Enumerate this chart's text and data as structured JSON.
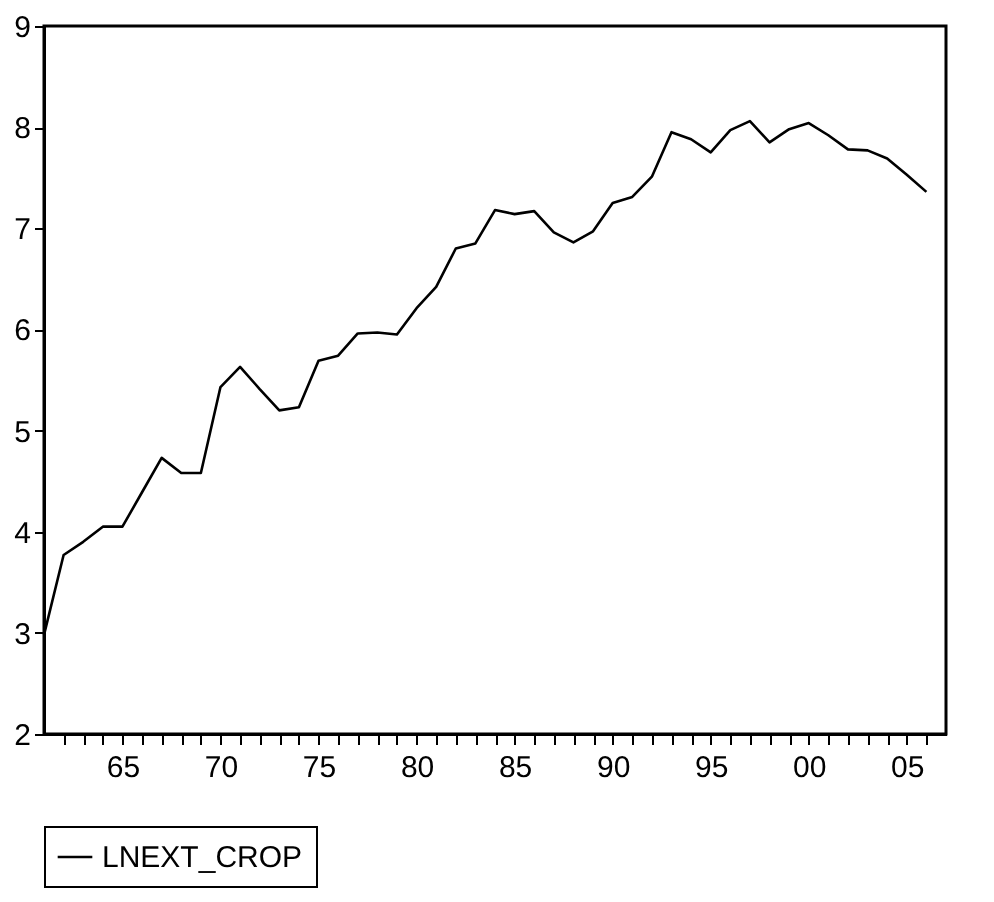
{
  "chart_data": {
    "type": "line",
    "x": [
      1961,
      1962,
      1963,
      1964,
      1965,
      1966,
      1967,
      1968,
      1969,
      1970,
      1971,
      1972,
      1973,
      1974,
      1975,
      1976,
      1977,
      1978,
      1979,
      1980,
      1981,
      1982,
      1983,
      1984,
      1985,
      1986,
      1987,
      1988,
      1989,
      1990,
      1991,
      1992,
      1993,
      1994,
      1995,
      1996,
      1997,
      1998,
      1999,
      2000,
      2001,
      2002,
      2003,
      2004,
      2005,
      2006
    ],
    "series": [
      {
        "name": "LNEXT_CROP",
        "color": "#000000",
        "values": [
          2.98,
          3.77,
          3.9,
          4.05,
          4.05,
          4.39,
          4.73,
          4.58,
          4.58,
          5.43,
          5.63,
          5.41,
          5.2,
          5.23,
          5.69,
          5.74,
          5.96,
          5.97,
          5.95,
          6.21,
          6.42,
          6.8,
          6.85,
          7.18,
          7.14,
          7.17,
          6.96,
          6.86,
          6.97,
          7.25,
          7.31,
          7.51,
          7.95,
          7.88,
          7.75,
          7.97,
          8.06,
          7.85,
          7.98,
          8.04,
          7.92,
          7.78,
          7.77,
          7.69,
          7.53,
          7.36
        ]
      }
    ],
    "xlim": [
      1961,
      2007
    ],
    "xticks": [
      {
        "value": 1962,
        "label": null
      },
      {
        "value": 1963,
        "label": null
      },
      {
        "value": 1964,
        "label": null
      },
      {
        "value": 1965,
        "label": "65"
      },
      {
        "value": 1966,
        "label": null
      },
      {
        "value": 1967,
        "label": null
      },
      {
        "value": 1968,
        "label": null
      },
      {
        "value": 1969,
        "label": null
      },
      {
        "value": 1970,
        "label": "70"
      },
      {
        "value": 1971,
        "label": null
      },
      {
        "value": 1972,
        "label": null
      },
      {
        "value": 1973,
        "label": null
      },
      {
        "value": 1974,
        "label": null
      },
      {
        "value": 1975,
        "label": "75"
      },
      {
        "value": 1976,
        "label": null
      },
      {
        "value": 1977,
        "label": null
      },
      {
        "value": 1978,
        "label": null
      },
      {
        "value": 1979,
        "label": null
      },
      {
        "value": 1980,
        "label": "80"
      },
      {
        "value": 1981,
        "label": null
      },
      {
        "value": 1982,
        "label": null
      },
      {
        "value": 1983,
        "label": null
      },
      {
        "value": 1984,
        "label": null
      },
      {
        "value": 1985,
        "label": "85"
      },
      {
        "value": 1986,
        "label": null
      },
      {
        "value": 1987,
        "label": null
      },
      {
        "value": 1988,
        "label": null
      },
      {
        "value": 1989,
        "label": null
      },
      {
        "value": 1990,
        "label": "90"
      },
      {
        "value": 1991,
        "label": null
      },
      {
        "value": 1992,
        "label": null
      },
      {
        "value": 1993,
        "label": null
      },
      {
        "value": 1994,
        "label": null
      },
      {
        "value": 1995,
        "label": "95"
      },
      {
        "value": 1996,
        "label": null
      },
      {
        "value": 1997,
        "label": null
      },
      {
        "value": 1998,
        "label": null
      },
      {
        "value": 1999,
        "label": null
      },
      {
        "value": 2000,
        "label": "00"
      },
      {
        "value": 2001,
        "label": null
      },
      {
        "value": 2002,
        "label": null
      },
      {
        "value": 2003,
        "label": null
      },
      {
        "value": 2004,
        "label": null
      },
      {
        "value": 2005,
        "label": "05"
      },
      {
        "value": 2006,
        "label": null
      }
    ],
    "ylim": [
      2,
      9
    ],
    "yticks": [
      2,
      3,
      4,
      5,
      6,
      7,
      8,
      9
    ],
    "grid": false,
    "legend": "bottom",
    "marker": "none",
    "line_style": "solid"
  }
}
